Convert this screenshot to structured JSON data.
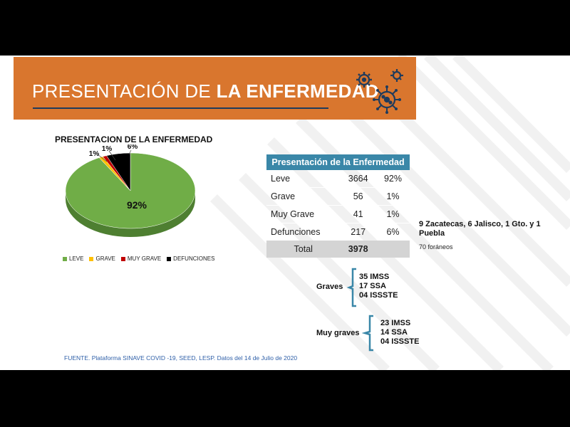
{
  "header": {
    "title_regular": "PRESENTACIÓN DE ",
    "title_bold": "LA ENFERMEDAD"
  },
  "colors": {
    "banner": "#d9762e",
    "table_header": "#3a87a8",
    "bracket": "#3a87a8",
    "pie": [
      "#70ad47",
      "#ffc000",
      "#c00000",
      "#000000"
    ]
  },
  "chart_data": {
    "type": "pie",
    "title": "PRESENTACION DE LA ENFERMEDAD",
    "categories": [
      "LEVE",
      "GRAVE",
      "MUY GRAVE",
      "DEFUNCIONES"
    ],
    "values": [
      92,
      1,
      1,
      6
    ],
    "data_labels": [
      "92%",
      "1%",
      "1%",
      "6%"
    ],
    "legend_position": "bottom"
  },
  "table": {
    "header": "Presentación de la Enfermedad",
    "rows": [
      {
        "label": "Leve",
        "count": "3664",
        "pct": "92%"
      },
      {
        "label": "Grave",
        "count": "56",
        "pct": "1%"
      },
      {
        "label": "Muy Grave",
        "count": "41",
        "pct": "1%"
      },
      {
        "label": "Defunciones",
        "count": "217",
        "pct": "6%"
      }
    ],
    "total_label": "Total",
    "total_value": "3978"
  },
  "foraneos": {
    "bold": "9 Zacatecas, 6 Jalisco, 1 Gto. y 1 Puebla",
    "small": "70 foráneos"
  },
  "graves": {
    "label": "Graves",
    "items": [
      "35 IMSS",
      "17 SSA",
      "04 ISSSTE"
    ]
  },
  "muy_graves": {
    "label": "Muy graves",
    "items": [
      "23 IMSS",
      "14 SSA",
      "04 ISSSTE"
    ]
  },
  "source": "FUENTE. Plataforma SINAVE COVID -19, SEED, LESP. Datos del 14 de Julio de 2020"
}
